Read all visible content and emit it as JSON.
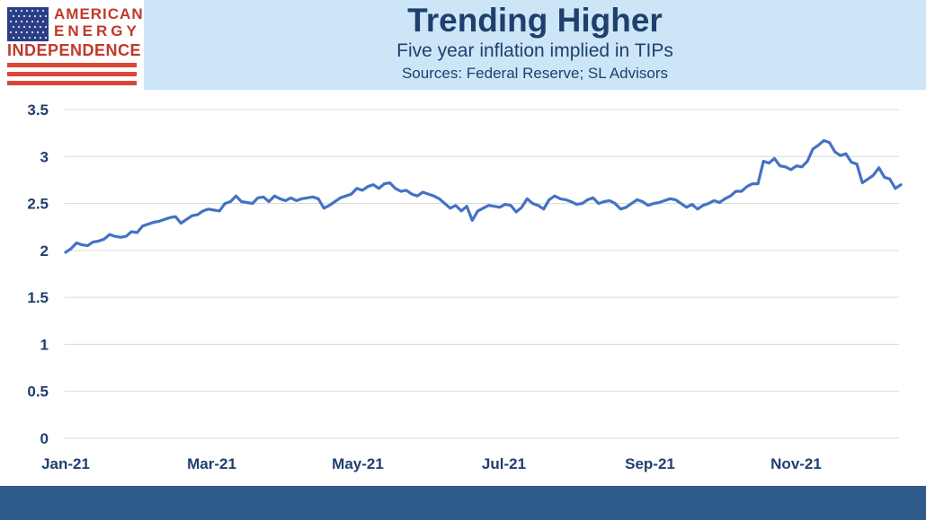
{
  "logo": {
    "line1": "AMERICAN",
    "line2": "ENERGY",
    "line3": "INDEPENDENCE"
  },
  "header": {
    "title": "Trending Higher",
    "subtitle": "Five year inflation implied in TIPs",
    "sources": "Sources: Federal Reserve; SL Advisors"
  },
  "colors": {
    "header_bg": "#cce6f7",
    "title_text": "#1f3f6e",
    "line": "#4472c4",
    "footer_bar": "#2e5b8a",
    "logo_red": "#c0392b",
    "flag_blue": "#2b3f86"
  },
  "chart_data": {
    "type": "line",
    "title": "",
    "xlabel": "",
    "ylabel": "",
    "ylim": [
      0,
      3.5
    ],
    "y_ticks": [
      "0",
      "0.5",
      "1",
      "1.5",
      "2",
      "2.5",
      "3",
      "3.5"
    ],
    "x_ticks": [
      "Jan-21",
      "Mar-21",
      "May-21",
      "Jul-21",
      "Sep-21",
      "Nov-21"
    ],
    "grid": "horizontal",
    "legend": "none",
    "series": [
      {
        "values": [
          1.98,
          2.02,
          2.08,
          2.06,
          2.05,
          2.09,
          2.1,
          2.12,
          2.17,
          2.15,
          2.14,
          2.15,
          2.2,
          2.19,
          2.26,
          2.28,
          2.3,
          2.31,
          2.33,
          2.35,
          2.36,
          2.29,
          2.33,
          2.37,
          2.38,
          2.42,
          2.44,
          2.43,
          2.42,
          2.5,
          2.52,
          2.58,
          2.52,
          2.51,
          2.5,
          2.56,
          2.57,
          2.52,
          2.58,
          2.55,
          2.53,
          2.56,
          2.53,
          2.55,
          2.56,
          2.57,
          2.55,
          2.45,
          2.48,
          2.52,
          2.56,
          2.58,
          2.6,
          2.66,
          2.64,
          2.68,
          2.7,
          2.66,
          2.71,
          2.72,
          2.66,
          2.63,
          2.64,
          2.6,
          2.58,
          2.62,
          2.6,
          2.58,
          2.55,
          2.5,
          2.45,
          2.48,
          2.42,
          2.47,
          2.32,
          2.42,
          2.45,
          2.48,
          2.47,
          2.46,
          2.49,
          2.48,
          2.41,
          2.46,
          2.55,
          2.5,
          2.48,
          2.44,
          2.54,
          2.58,
          2.55,
          2.54,
          2.52,
          2.49,
          2.5,
          2.54,
          2.56,
          2.5,
          2.52,
          2.53,
          2.5,
          2.44,
          2.46,
          2.5,
          2.54,
          2.52,
          2.48,
          2.5,
          2.51,
          2.53,
          2.55,
          2.54,
          2.5,
          2.46,
          2.49,
          2.44,
          2.48,
          2.5,
          2.53,
          2.51,
          2.55,
          2.58,
          2.63,
          2.63,
          2.68,
          2.71,
          2.71,
          2.95,
          2.93,
          2.98,
          2.9,
          2.89,
          2.86,
          2.9,
          2.89,
          2.95,
          3.08,
          3.12,
          3.17,
          3.15,
          3.05,
          3.01,
          3.03,
          2.94,
          2.92,
          2.72,
          2.76,
          2.8,
          2.88,
          2.78,
          2.76,
          2.66,
          2.7
        ]
      }
    ]
  }
}
